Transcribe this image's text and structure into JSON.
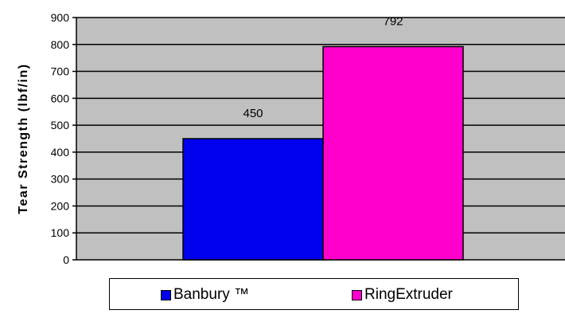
{
  "chart_data": {
    "type": "bar",
    "categories": [
      ""
    ],
    "series": [
      {
        "name": "Banbury ™",
        "values": [
          450
        ],
        "color": "#0000ee"
      },
      {
        "name": "RingExtruder",
        "values": [
          792
        ],
        "color": "#ff00cc"
      }
    ],
    "title": "",
    "xlabel": "",
    "ylabel": "Tear Strength (lbf/in)",
    "ylim": [
      0,
      900
    ],
    "yticks": [
      "0",
      "100",
      "200",
      "300",
      "400",
      "500",
      "600",
      "700",
      "800",
      "900"
    ],
    "data_labels": [
      "450",
      "792"
    ],
    "grid": true,
    "plot_background": "#c0c0c0",
    "legend": "bottom"
  }
}
